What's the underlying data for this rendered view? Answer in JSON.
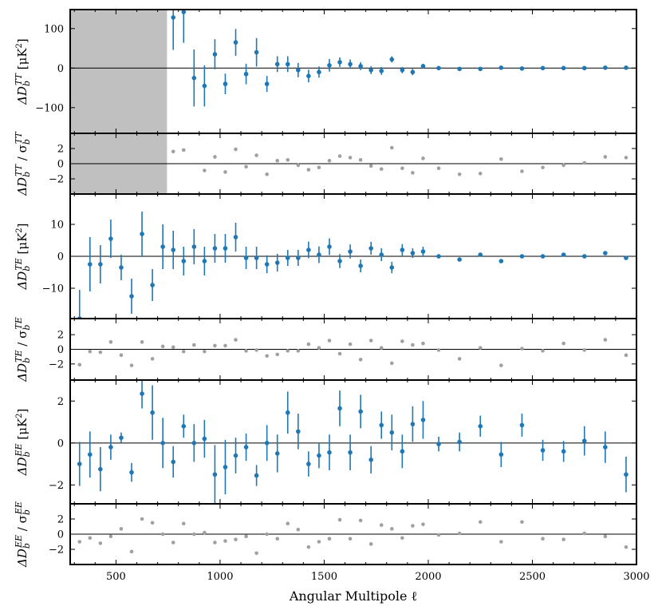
{
  "figure": {
    "xlabel": "Angular Multipole ℓ",
    "xlim": [
      280,
      3000
    ],
    "xticks": [
      500,
      1000,
      1500,
      2000,
      2500,
      3000
    ],
    "colors": {
      "data": "#1f77b4",
      "ratio": "#a0a0a0",
      "shade": "#c0c0c0",
      "zero_line": "#000000"
    }
  },
  "chart_data": [
    {
      "type": "scatter",
      "panel": "TT residual",
      "ylabel": "ΔD_b^TT [μK²]",
      "ylim": [
        -165,
        148
      ],
      "yticks": [
        -100,
        0,
        100
      ],
      "masked_xrange": [
        280,
        745
      ],
      "x": [
        775,
        825,
        875,
        925,
        975,
        1025,
        1075,
        1125,
        1175,
        1225,
        1275,
        1325,
        1375,
        1425,
        1475,
        1525,
        1575,
        1625,
        1675,
        1725,
        1775,
        1825,
        1875,
        1925,
        1975,
        2050,
        2150,
        2250,
        2350,
        2450,
        2550,
        2650,
        2750,
        2850,
        2950
      ],
      "y": [
        128,
        142,
        -25,
        -45,
        35,
        -40,
        65,
        -15,
        40,
        -40,
        10,
        10,
        -5,
        -20,
        -10,
        7,
        15,
        10,
        5,
        -5,
        -7,
        22,
        -5,
        -10,
        5,
        0,
        -2,
        -2,
        1,
        -1,
        0,
        0,
        0,
        1,
        1
      ],
      "yerr": [
        82,
        78,
        72,
        52,
        38,
        26,
        34,
        26,
        36,
        20,
        20,
        20,
        18,
        16,
        14,
        16,
        12,
        12,
        10,
        10,
        10,
        8,
        8,
        8,
        6,
        3,
        3,
        3,
        2,
        2,
        2,
        2,
        2,
        2,
        2
      ]
    },
    {
      "type": "scatter",
      "panel": "TT normalized",
      "ylabel": "ΔD_b^TT / σ_b^TT",
      "ylim": [
        -4,
        4
      ],
      "yticks": [
        -2,
        0,
        2
      ],
      "masked_xrange": [
        280,
        745
      ],
      "x": [
        775,
        825,
        925,
        975,
        1025,
        1075,
        1125,
        1175,
        1225,
        1275,
        1325,
        1375,
        1425,
        1475,
        1525,
        1575,
        1625,
        1675,
        1725,
        1775,
        1825,
        1875,
        1925,
        1975,
        2050,
        2150,
        2250,
        2350,
        2450,
        2550,
        2650,
        2750,
        2850,
        2950
      ],
      "y": [
        1.6,
        1.8,
        -0.9,
        0.9,
        -1.1,
        1.9,
        -0.4,
        1.1,
        -1.4,
        0.4,
        0.5,
        -0.2,
        -0.8,
        -0.5,
        0.4,
        1.0,
        0.8,
        0.5,
        -0.3,
        -0.7,
        2.1,
        -0.6,
        -1.2,
        0.7,
        -0.6,
        -1.4,
        -1.3,
        0.6,
        -1.0,
        -0.5,
        -0.2,
        0.1,
        0.9,
        0.8
      ]
    },
    {
      "type": "scatter",
      "panel": "TE residual",
      "ylabel": "ΔD_b^TE [μK²]",
      "ylim": [
        -19.5,
        19.5
      ],
      "yticks": [
        -10,
        0,
        10
      ],
      "x": [
        325,
        375,
        425,
        475,
        525,
        575,
        625,
        675,
        725,
        775,
        825,
        875,
        925,
        975,
        1025,
        1075,
        1125,
        1175,
        1225,
        1275,
        1325,
        1375,
        1425,
        1475,
        1525,
        1575,
        1625,
        1675,
        1725,
        1775,
        1825,
        1875,
        1925,
        1975,
        2050,
        2150,
        2250,
        2350,
        2450,
        2550,
        2650,
        2750,
        2850,
        2950
      ],
      "y": [
        -19.5,
        -2.5,
        -2.5,
        5.5,
        -3.5,
        -12.5,
        7.0,
        -9.0,
        3.0,
        2.0,
        -1.5,
        3.0,
        -1.5,
        2.5,
        2.5,
        6.0,
        -0.5,
        -0.5,
        -2.5,
        -2.0,
        -0.5,
        -0.5,
        2.0,
        0.5,
        3.0,
        -1.5,
        1.5,
        -3.0,
        2.5,
        0.5,
        -3.5,
        2.0,
        1.0,
        1.5,
        0.0,
        -1.0,
        0.5,
        -1.5,
        0.0,
        0.0,
        0.5,
        0.0,
        1.0,
        -0.5
      ],
      "yerr": [
        9,
        8.5,
        6,
        6,
        4,
        5.5,
        7,
        5,
        7,
        6,
        4.5,
        5.5,
        4.5,
        4.5,
        4.5,
        4.5,
        3.5,
        3.5,
        2.8,
        2.8,
        2.5,
        2.5,
        2.6,
        2.6,
        2.6,
        2.2,
        2.2,
        2.0,
        2.0,
        2.0,
        1.8,
        1.8,
        1.5,
        1.5,
        0.6,
        0.6,
        0.6,
        0.6,
        0.5,
        0.5,
        0.5,
        0.5,
        0.5,
        0.5
      ]
    },
    {
      "type": "scatter",
      "panel": "TE normalized",
      "ylabel": "ΔD_b^TE / σ_b^TE",
      "ylim": [
        -4.2,
        4.2
      ],
      "yticks": [
        -2,
        0,
        2
      ],
      "x": [
        325,
        375,
        425,
        475,
        525,
        575,
        625,
        675,
        725,
        775,
        825,
        875,
        925,
        975,
        1025,
        1075,
        1125,
        1175,
        1225,
        1275,
        1325,
        1375,
        1425,
        1475,
        1525,
        1575,
        1625,
        1675,
        1725,
        1775,
        1825,
        1875,
        1925,
        1975,
        2050,
        2150,
        2250,
        2350,
        2450,
        2550,
        2650,
        2750,
        2850,
        2950
      ],
      "y": [
        -2.1,
        -0.3,
        -0.4,
        1.0,
        -0.8,
        -2.2,
        1.0,
        -1.3,
        0.4,
        0.3,
        -0.3,
        0.6,
        -0.3,
        0.5,
        0.5,
        1.3,
        -0.2,
        -0.1,
        -0.9,
        -0.7,
        -0.2,
        -0.2,
        0.7,
        0.2,
        1.2,
        -0.6,
        0.7,
        -1.4,
        1.2,
        0.2,
        -1.9,
        1.1,
        0.6,
        0.8,
        -0.1,
        -1.3,
        0.2,
        -2.2,
        0.1,
        -0.2,
        0.8,
        -0.1,
        1.3,
        -0.8
      ]
    },
    {
      "type": "scatter",
      "panel": "EE residual",
      "ylabel": "ΔD_b^EE [μK²]",
      "ylim": [
        -2.9,
        3.0
      ],
      "yticks": [
        -2,
        0,
        2
      ],
      "x": [
        325,
        375,
        425,
        475,
        525,
        575,
        625,
        675,
        725,
        775,
        825,
        875,
        925,
        975,
        1025,
        1075,
        1125,
        1175,
        1225,
        1275,
        1325,
        1375,
        1425,
        1475,
        1525,
        1575,
        1625,
        1675,
        1725,
        1775,
        1825,
        1875,
        1925,
        1975,
        2050,
        2150,
        2250,
        2350,
        2450,
        2550,
        2650,
        2750,
        2850,
        2950
      ],
      "y": [
        -1.0,
        -0.55,
        -1.25,
        -0.2,
        0.25,
        -1.4,
        2.35,
        1.45,
        0.0,
        -0.9,
        0.8,
        0.0,
        0.2,
        -1.5,
        -1.15,
        -0.6,
        -0.2,
        -1.55,
        0.0,
        -0.5,
        1.45,
        0.55,
        -1.0,
        -0.6,
        -0.45,
        1.65,
        -0.45,
        1.5,
        -0.8,
        0.85,
        0.5,
        -0.4,
        0.9,
        1.1,
        -0.05,
        0.05,
        0.8,
        -0.55,
        0.85,
        -0.35,
        -0.4,
        0.1,
        -0.2,
        -1.5
      ],
      "yerr": [
        1.05,
        1.1,
        1.05,
        0.6,
        0.25,
        0.45,
        0.7,
        1.3,
        1.2,
        0.75,
        0.55,
        0.9,
        0.9,
        1.4,
        1.3,
        0.85,
        0.65,
        0.5,
        0.85,
        0.9,
        1.0,
        0.85,
        0.6,
        0.6,
        0.85,
        0.85,
        0.85,
        0.8,
        0.65,
        0.65,
        0.85,
        0.8,
        0.85,
        0.9,
        0.35,
        0.45,
        0.5,
        0.6,
        0.55,
        0.5,
        0.5,
        0.7,
        0.75,
        0.85
      ]
    },
    {
      "type": "scatter",
      "panel": "EE normalized",
      "ylabel": "ΔD_b^EE / σ_b^EE",
      "ylim": [
        -4,
        4
      ],
      "yticks": [
        -2,
        0,
        2
      ],
      "x": [
        325,
        375,
        425,
        475,
        525,
        575,
        625,
        675,
        725,
        775,
        825,
        875,
        925,
        975,
        1025,
        1075,
        1125,
        1175,
        1225,
        1275,
        1325,
        1375,
        1425,
        1475,
        1525,
        1575,
        1625,
        1675,
        1725,
        1775,
        1825,
        1875,
        1925,
        1975,
        2050,
        2150,
        2250,
        2350,
        2450,
        2550,
        2650,
        2750,
        2850,
        2950
      ],
      "y": [
        -1.0,
        -0.5,
        -1.2,
        -0.3,
        0.7,
        -2.3,
        2.0,
        1.5,
        0.0,
        -1.1,
        1.4,
        0.0,
        0.2,
        -1.1,
        -0.9,
        -0.7,
        -0.3,
        -2.5,
        0.0,
        -0.6,
        1.4,
        0.6,
        -1.7,
        -1.0,
        -0.6,
        1.9,
        -0.6,
        1.8,
        -1.3,
        1.2,
        0.7,
        -0.5,
        1.1,
        1.3,
        -0.1,
        0.1,
        1.6,
        -1.0,
        1.6,
        -0.6,
        -0.7,
        0.1,
        -0.3,
        -1.7
      ]
    }
  ]
}
